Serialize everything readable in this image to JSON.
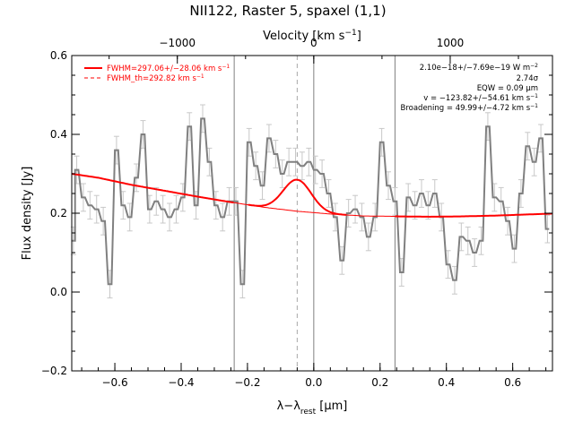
{
  "chart_data": {
    "type": "line",
    "title": "NII122, Raster 5, spaxel (1,1)",
    "xlabel": "λ−λ",
    "xlabel_sub": "rest",
    "xlabel_unit": " [μm]",
    "ylabel": "Flux density [Jy]",
    "top_axis_label_prefix": "Velocity [km s",
    "top_axis_label_sup": "−1",
    "top_axis_label_suffix": "]",
    "xlim": [
      -0.73,
      0.72
    ],
    "ylim": [
      -0.2,
      0.6
    ],
    "grid": false,
    "x_ticks": [
      -0.6,
      -0.4,
      -0.2,
      0.0,
      0.2,
      0.4,
      0.6
    ],
    "x_tick_labels": [
      "−0.6",
      "−0.4",
      "−0.2",
      "0.0",
      "0.2",
      "0.4",
      "0.6"
    ],
    "y_ticks": [
      -0.2,
      0.0,
      0.2,
      0.4,
      0.6
    ],
    "y_tick_labels": [
      "−0.2",
      "0.0",
      "0.2",
      "0.4",
      "0.6"
    ],
    "top_ticks_velocity": [
      -1000,
      0,
      1000
    ],
    "top_tick_labels": [
      "−1000",
      "0",
      "1000"
    ],
    "velocity_per_micron": 2430,
    "vlines_x": [
      -0.24,
      0.0,
      0.245
    ],
    "dashed_vline_x": -0.05,
    "legend": {
      "position": "top-left",
      "entries": [
        {
          "label": "FWHM=297.06+/−28.06 km s",
          "sup": "−1",
          "style": "solid",
          "color": "#ff0000"
        },
        {
          "label": "FWHM_th=292.82 km s",
          "sup": "−1",
          "style": "dashed",
          "color": "#ff0000"
        }
      ]
    },
    "annotations": [
      {
        "text": "2.10e−18+/−7.69e−19 W m",
        "sup": "−2"
      },
      {
        "text": "2.74σ",
        "sup": ""
      },
      {
        "text": "EQW = 0.09 μm",
        "sup": ""
      },
      {
        "text": "v = −123.82+/−54.61 km s",
        "sup": "−1"
      },
      {
        "text": "Broadening = 49.99+/−4.72 km s",
        "sup": "−1"
      }
    ],
    "series": [
      {
        "style": "step",
        "color": "#808080",
        "x": [
          -0.725,
          -0.715,
          -0.695,
          -0.675,
          -0.655,
          -0.635,
          -0.615,
          -0.595,
          -0.575,
          -0.555,
          -0.535,
          -0.515,
          -0.495,
          -0.475,
          -0.455,
          -0.435,
          -0.415,
          -0.395,
          -0.375,
          -0.355,
          -0.335,
          -0.315,
          -0.295,
          -0.275,
          -0.255,
          -0.235,
          -0.215,
          -0.195,
          -0.175,
          -0.155,
          -0.135,
          -0.115,
          -0.095,
          -0.075,
          -0.055,
          -0.035,
          -0.015,
          0.005,
          0.025,
          0.045,
          0.065,
          0.085,
          0.105,
          0.125,
          0.145,
          0.165,
          0.185,
          0.205,
          0.225,
          0.245,
          0.265,
          0.285,
          0.305,
          0.325,
          0.345,
          0.365,
          0.385,
          0.405,
          0.425,
          0.445,
          0.465,
          0.485,
          0.505,
          0.525,
          0.545,
          0.565,
          0.585,
          0.605,
          0.625,
          0.645,
          0.665,
          0.685,
          0.705
        ],
        "y": [
          0.13,
          0.31,
          0.24,
          0.22,
          0.21,
          0.18,
          0.02,
          0.36,
          0.22,
          0.19,
          0.29,
          0.4,
          0.21,
          0.23,
          0.21,
          0.19,
          0.21,
          0.24,
          0.42,
          0.22,
          0.44,
          0.33,
          0.22,
          0.19,
          0.23,
          0.23,
          0.02,
          0.38,
          0.32,
          0.27,
          0.39,
          0.35,
          0.3,
          0.33,
          0.33,
          0.32,
          0.33,
          0.31,
          0.3,
          0.25,
          0.19,
          0.08,
          0.2,
          0.21,
          0.19,
          0.14,
          0.19,
          0.38,
          0.27,
          0.23,
          0.05,
          0.24,
          0.22,
          0.25,
          0.22,
          0.25,
          0.19,
          0.07,
          0.03,
          0.14,
          0.13,
          0.1,
          0.13,
          0.42,
          0.24,
          0.23,
          0.18,
          0.11,
          0.25,
          0.37,
          0.33,
          0.39,
          0.16
        ],
        "yerr": 0.035
      },
      {
        "style": "line",
        "color": "#ff0000",
        "model": "continuum",
        "x": [
          -0.73,
          -0.65,
          -0.55,
          -0.45,
          -0.35,
          -0.25,
          -0.15,
          -0.05,
          0.05,
          0.15,
          0.25,
          0.35,
          0.45,
          0.55,
          0.65,
          0.72
        ],
        "y": [
          0.3,
          0.29,
          0.272,
          0.257,
          0.242,
          0.228,
          0.215,
          0.205,
          0.198,
          0.193,
          0.192,
          0.191,
          0.192,
          0.194,
          0.197,
          0.199
        ]
      },
      {
        "style": "line",
        "color": "#ff0000",
        "model": "gaussian",
        "center": -0.05,
        "amplitude": 0.08,
        "sigma": 0.042
      }
    ]
  }
}
